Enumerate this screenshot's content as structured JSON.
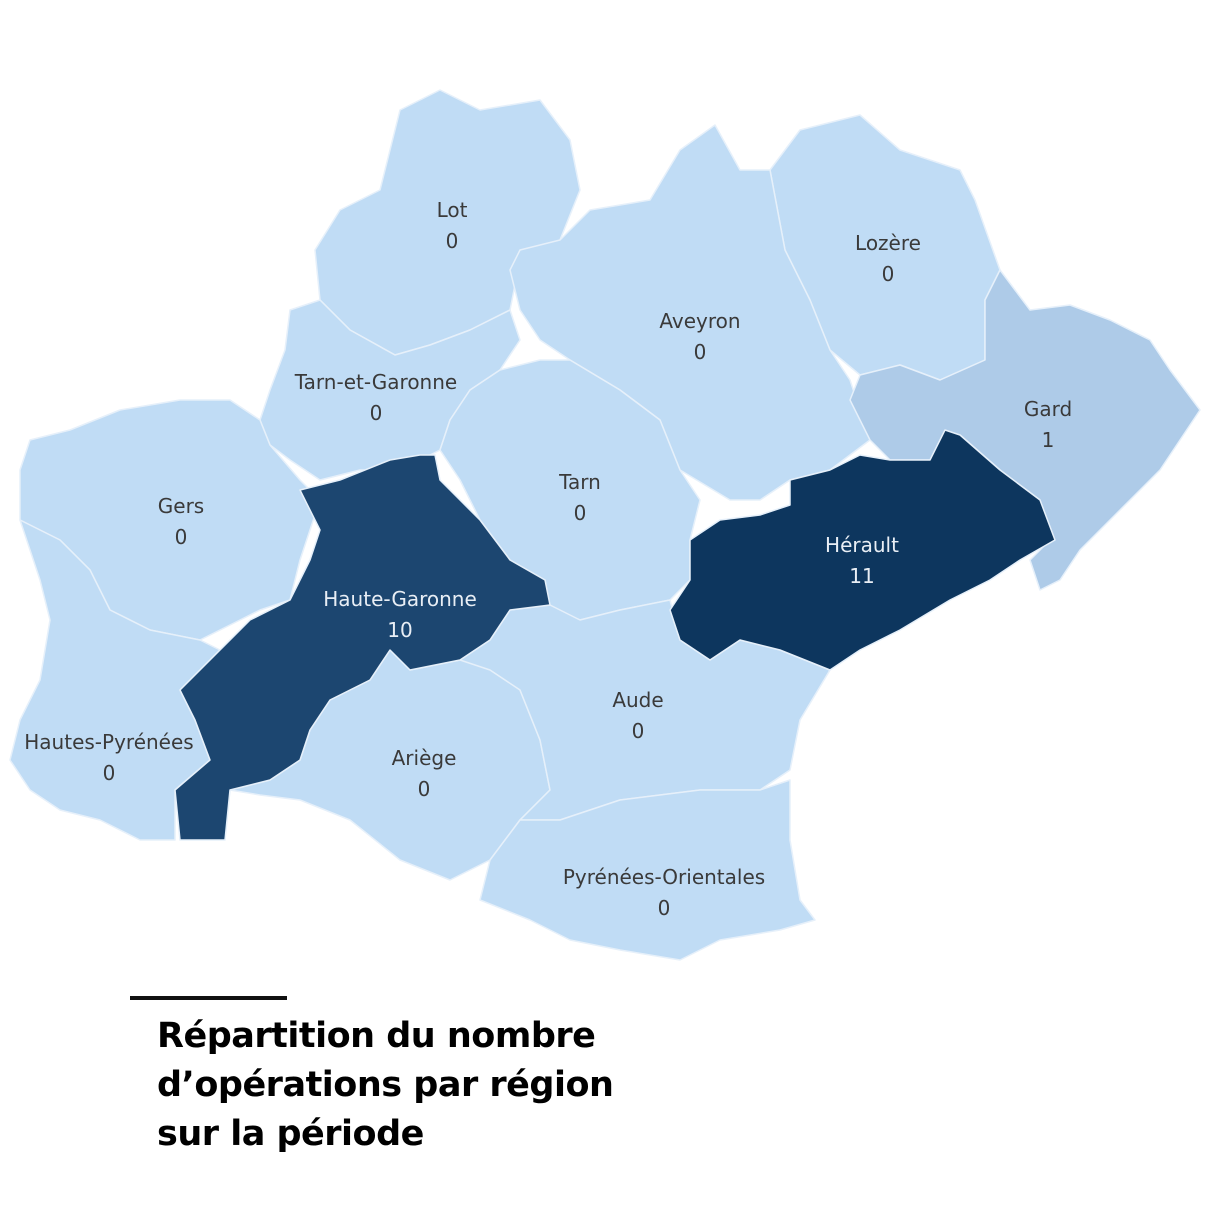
{
  "title": "Répartition du nombre d’opérations par région sur la période",
  "colors": {
    "zero": "#c0dcf5",
    "low": "#aecbe8",
    "high": "#1c4670",
    "max": "#0d365e",
    "label_dark": "#3a3a3a",
    "label_light": "#e8eef5"
  },
  "departments": [
    {
      "name": "Lot",
      "value": "0"
    },
    {
      "name": "Lozère",
      "value": "0"
    },
    {
      "name": "Aveyron",
      "value": "0"
    },
    {
      "name": "Gard",
      "value": "1"
    },
    {
      "name": "Tarn-et-Garonne",
      "value": "0"
    },
    {
      "name": "Tarn",
      "value": "0"
    },
    {
      "name": "Gers",
      "value": "0"
    },
    {
      "name": "Hautes-Pyrénées",
      "value": "0"
    },
    {
      "name": "Ariège",
      "value": "0"
    },
    {
      "name": "Aude",
      "value": "0"
    },
    {
      "name": "Pyrénées-Orientales",
      "value": "0"
    },
    {
      "name": "Haute-Garonne",
      "value": "10"
    },
    {
      "name": "Hérault",
      "value": "11"
    }
  ]
}
